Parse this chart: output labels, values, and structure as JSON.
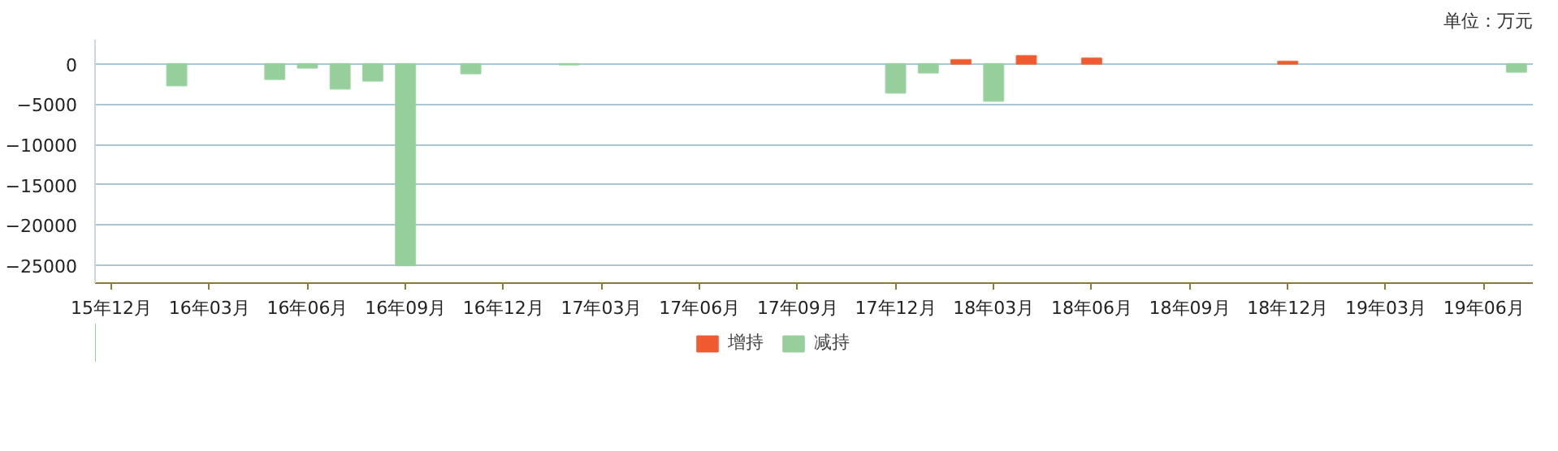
{
  "chart_data": {
    "type": "bar",
    "annotations": [
      "单位：万元"
    ],
    "categories": [
      "15年12月",
      null,
      null,
      "16年03月",
      null,
      null,
      "16年06月",
      null,
      null,
      "16年09月",
      null,
      null,
      "16年12月",
      null,
      null,
      "17年03月",
      null,
      null,
      "17年06月",
      null,
      null,
      "17年09月",
      null,
      null,
      "17年12月",
      null,
      null,
      "18年03月",
      null,
      null,
      "18年06月",
      null,
      null,
      "18年09月",
      null,
      null,
      "18年12月",
      null,
      null,
      "19年03月",
      null,
      null,
      "19年06月",
      null
    ],
    "series": [
      {
        "name": "增持",
        "color": "#f05a30",
        "values": [
          null,
          null,
          null,
          null,
          null,
          null,
          null,
          null,
          null,
          null,
          null,
          null,
          null,
          null,
          null,
          null,
          null,
          null,
          null,
          null,
          null,
          null,
          null,
          null,
          null,
          null,
          500,
          null,
          1000,
          null,
          700,
          null,
          null,
          null,
          null,
          null,
          300,
          null,
          null,
          null,
          null,
          null,
          null,
          null
        ]
      },
      {
        "name": "减持",
        "color": "#96cf9b",
        "values": [
          null,
          null,
          -2700,
          null,
          null,
          -1900,
          -500,
          -3100,
          -2100,
          -25000,
          null,
          -1200,
          null,
          null,
          -100,
          null,
          null,
          null,
          null,
          null,
          null,
          null,
          null,
          null,
          -3600,
          -1100,
          null,
          -4600,
          null,
          null,
          null,
          null,
          null,
          null,
          null,
          null,
          null,
          null,
          null,
          null,
          null,
          null,
          null,
          -1000
        ]
      }
    ],
    "ylim": [
      -27200,
      3000
    ],
    "yticks": [
      -25000,
      -20000,
      -15000,
      -10000,
      -5000,
      0
    ],
    "grid": "y",
    "legend": "bottom"
  }
}
